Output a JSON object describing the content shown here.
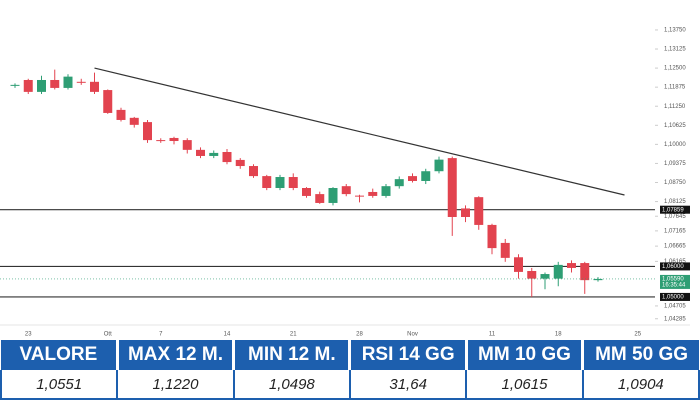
{
  "chart_data": {
    "type": "candlestick",
    "categories": [
      null,
      "23",
      null,
      null,
      null,
      null,
      null,
      "Ott",
      null,
      null,
      null,
      "7",
      null,
      null,
      null,
      null,
      "14",
      null,
      null,
      null,
      null,
      "21",
      null,
      null,
      null,
      null,
      "28",
      null,
      null,
      null,
      "Nov",
      null,
      null,
      null,
      null,
      null,
      "11",
      null,
      null,
      null,
      null,
      "18",
      null,
      null,
      null,
      null,
      null,
      "25"
    ],
    "open": [
      1.1195,
      1.1211,
      1.1172,
      1.1211,
      1.1185,
      1.1205,
      1.1205,
      1.1178,
      1.1113,
      1.1087,
      1.1073,
      1.1014,
      1.1021,
      1.1014,
      1.0982,
      1.0962,
      1.0975,
      1.0949,
      1.0929,
      1.0896,
      1.0857,
      1.0893,
      1.0857,
      1.0837,
      1.0808,
      1.0863,
      1.0832,
      1.0844,
      1.0831,
      1.0863,
      1.0896,
      1.088,
      1.0912,
      1.0955,
      1.079,
      1.0827,
      1.0736,
      1.0677,
      1.063,
      1.0585,
      1.056,
      1.056,
      1.0611,
      1.0611,
      1.0555,
      null,
      null,
      null
    ],
    "high": [
      1.12,
      1.1215,
      1.1225,
      1.1245,
      1.123,
      1.1215,
      1.1235,
      1.118,
      1.112,
      1.109,
      1.108,
      1.102,
      1.1025,
      1.102,
      1.099,
      1.098,
      1.0985,
      1.0955,
      1.0935,
      1.09,
      1.09,
      1.0905,
      1.086,
      1.0845,
      1.086,
      1.087,
      1.0835,
      1.0855,
      1.087,
      1.0895,
      1.0905,
      1.092,
      1.096,
      1.096,
      1.08,
      1.083,
      1.074,
      1.069,
      1.064,
      1.0595,
      1.058,
      1.0615,
      1.062,
      1.0615,
      1.0565,
      null,
      null,
      null
    ],
    "low": [
      1.1185,
      1.1165,
      1.1165,
      1.118,
      1.118,
      1.1195,
      1.1165,
      1.11,
      1.1075,
      1.1055,
      1.1005,
      1.1005,
      1.1,
      1.097,
      1.0955,
      1.0955,
      1.0935,
      1.092,
      1.089,
      1.085,
      1.085,
      1.085,
      1.0825,
      1.0805,
      1.08,
      1.083,
      1.081,
      1.0825,
      1.0825,
      1.0855,
      1.0875,
      1.087,
      1.0905,
      1.07,
      1.0745,
      1.072,
      1.064,
      1.0615,
      1.056,
      1.05,
      1.0525,
      1.0535,
      1.058,
      1.051,
      1.055,
      null,
      null,
      null
    ],
    "close": [
      1.1195,
      1.1172,
      1.1211,
      1.1185,
      1.1222,
      1.1203,
      1.1172,
      1.1103,
      1.108,
      1.1064,
      1.1014,
      1.1012,
      1.1011,
      1.0982,
      1.0962,
      1.0972,
      1.0942,
      1.0929,
      1.0896,
      1.0857,
      1.0893,
      1.0857,
      1.0831,
      1.0808,
      1.0857,
      1.0837,
      1.083,
      1.0831,
      1.0863,
      1.0886,
      1.088,
      1.0912,
      1.095,
      1.0762,
      1.0762,
      1.0736,
      1.066,
      1.0628,
      1.0582,
      1.056,
      1.0575,
      1.0605,
      1.0595,
      1.0555,
      1.0559,
      null,
      null,
      null
    ],
    "up_color": "#2e9e74",
    "down_color": "#e2434f",
    "ylim": [
      1.0408,
      1.1424
    ],
    "yticks": [
      {
        "value": 1.1375,
        "label": "1,13750"
      },
      {
        "value": 1.13125,
        "label": "1,13125"
      },
      {
        "value": 1.125,
        "label": "1,12500"
      },
      {
        "value": 1.11875,
        "label": "1,11875"
      },
      {
        "value": 1.1125,
        "label": "1,11250"
      },
      {
        "value": 1.10625,
        "label": "1,10625"
      },
      {
        "value": 1.1,
        "label": "1,10000"
      },
      {
        "value": 1.09375,
        "label": "1,09375"
      },
      {
        "value": 1.0875,
        "label": "1,08750"
      },
      {
        "value": 1.08125,
        "label": "1,08125"
      },
      {
        "value": 1.07645,
        "label": "1,07645"
      },
      {
        "value": 1.07165,
        "label": "1,07165"
      },
      {
        "value": 1.06665,
        "label": "1,06665"
      },
      {
        "value": 1.06165,
        "label": "1,06165"
      },
      {
        "value": 1.04705,
        "label": "1,04705"
      },
      {
        "value": 1.04285,
        "label": "1,04285"
      }
    ],
    "levels": [
      {
        "value": 1.07859,
        "label": "1,07859"
      },
      {
        "value": 1.06,
        "label": "1,06000"
      },
      {
        "value": 1.05,
        "label": "1,05000"
      }
    ],
    "current_price": {
      "value": 1.0559,
      "label": "1,05590",
      "time": "16:35:44"
    },
    "trendline": {
      "x": [
        6,
        46
      ],
      "y": [
        1.125,
        1.0834
      ]
    }
  },
  "table": {
    "headers": [
      "VALORE",
      "MAX 12 M.",
      "MIN 12 M.",
      "RSI 14 GG",
      "MM 10 GG",
      "MM 50 GG"
    ],
    "rows": [
      [
        "1,0551",
        "1,1220",
        "1,0498",
        "31,64",
        "1,0615",
        "1,0904"
      ]
    ]
  }
}
